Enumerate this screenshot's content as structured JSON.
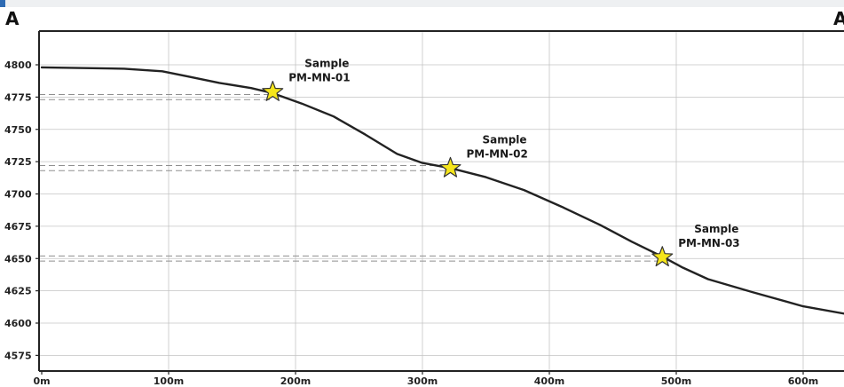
{
  "chart_data": {
    "type": "line",
    "corner_labels": {
      "left": "A",
      "right": "A'"
    },
    "x_ticks": [
      0,
      100,
      200,
      300,
      400,
      500,
      600
    ],
    "x_tick_labels": [
      "0m",
      "100m",
      "200m",
      "300m",
      "400m",
      "500m",
      "600m"
    ],
    "y_ticks": [
      4575,
      4600,
      4625,
      4650,
      4675,
      4700,
      4725,
      4750,
      4775,
      4800
    ],
    "y_tick_labels": [
      "4575",
      "4600",
      "4625",
      "4650",
      "4675",
      "4700",
      "4725",
      "4750",
      "4775",
      "4800"
    ],
    "xlim": [
      0,
      640
    ],
    "ylim": [
      4565,
      4825
    ],
    "grid": true,
    "line_color": "#222222",
    "marker_color": "#f5e51b",
    "profile": [
      [
        0,
        4798
      ],
      [
        65,
        4797
      ],
      [
        95,
        4795
      ],
      [
        115,
        4791
      ],
      [
        140,
        4786
      ],
      [
        165,
        4782
      ],
      [
        182,
        4778
      ],
      [
        205,
        4770
      ],
      [
        230,
        4760
      ],
      [
        255,
        4746
      ],
      [
        280,
        4731
      ],
      [
        300,
        4724
      ],
      [
        322,
        4720
      ],
      [
        350,
        4713
      ],
      [
        380,
        4703
      ],
      [
        410,
        4690
      ],
      [
        440,
        4676
      ],
      [
        465,
        4663
      ],
      [
        490,
        4651
      ],
      [
        505,
        4643
      ],
      [
        525,
        4634
      ],
      [
        560,
        4624
      ],
      [
        600,
        4613
      ],
      [
        640,
        4606
      ]
    ],
    "samples": [
      {
        "label": "Sample",
        "id": "PM-MN-01",
        "x": 182,
        "y": 4779,
        "lines": [
          4777,
          4773
        ]
      },
      {
        "label": "Sample",
        "id": "PM-MN-02",
        "x": 322,
        "y": 4720,
        "lines": [
          4722,
          4718
        ]
      },
      {
        "label": "Sample",
        "id": "PM-MN-03",
        "x": 489,
        "y": 4651,
        "lines": [
          4652,
          4648
        ]
      }
    ]
  }
}
